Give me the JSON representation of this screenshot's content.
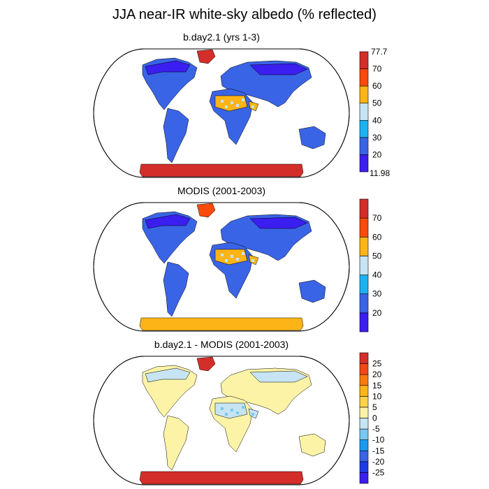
{
  "title": "JJA near-IR white-sky albedo (% reflected)",
  "colors": {
    "ocean": "#ffffff",
    "outline": "#000000"
  },
  "panels": [
    {
      "id": "model",
      "subtitle": "b.day2.1 (yrs 1-3)",
      "colorbar": {
        "top_label": "77.7",
        "bottom_label": "11.98",
        "labels": [
          "70",
          "60",
          "50",
          "40",
          "30",
          "20"
        ],
        "colors": [
          "#3b1ef0",
          "#3a64e6",
          "#1cb2f2",
          "#c6e4f4",
          "#fcb417",
          "#fa4a0c",
          "#d42e2a"
        ]
      },
      "fills": {
        "base": "#3a64e6",
        "north": "#3b1ef0",
        "desert": "#fcb417",
        "desert_spots": "#c6e4f4",
        "antarctica": "#d42e2a",
        "greenland": "#d42e2a"
      }
    },
    {
      "id": "modis",
      "subtitle": "MODIS (2001-2003)",
      "colorbar": {
        "top_label": "",
        "bottom_label": "",
        "labels": [
          "70",
          "60",
          "50",
          "40",
          "30",
          "20"
        ],
        "colors": [
          "#3b1ef0",
          "#3a64e6",
          "#1cb2f2",
          "#c6e4f4",
          "#fcb417",
          "#fa4a0c",
          "#d42e2a"
        ]
      },
      "fills": {
        "base": "#3a64e6",
        "north": "#3b1ef0",
        "desert": "#fcb417",
        "desert_spots": "#c6e4f4",
        "antarctica": "#fcb417",
        "greenland": "#fa4a0c"
      }
    },
    {
      "id": "difference",
      "subtitle": "b.day2.1 - MODIS (2001-2003)",
      "colorbar": {
        "top_label": "",
        "bottom_label": "",
        "labels": [
          "25",
          "20",
          "15",
          "10",
          "5",
          "0",
          "-5",
          "-10",
          "-15",
          "-20",
          "-25"
        ],
        "colors": [
          "#3b1ef0",
          "#1e3ae4",
          "#3a64e6",
          "#1c9af0",
          "#79c8f2",
          "#c6e4f4",
          "#fcf3a6",
          "#fcd248",
          "#fcb417",
          "#fa7a0c",
          "#f24818",
          "#d42e2a"
        ]
      },
      "fills": {
        "base": "#fcf3a6",
        "north": "#c6e4f4",
        "desert": "#c6e4f4",
        "desert_spots": "#79c8f2",
        "antarctica": "#d42e2a",
        "greenland": "#d42e2a"
      }
    }
  ]
}
